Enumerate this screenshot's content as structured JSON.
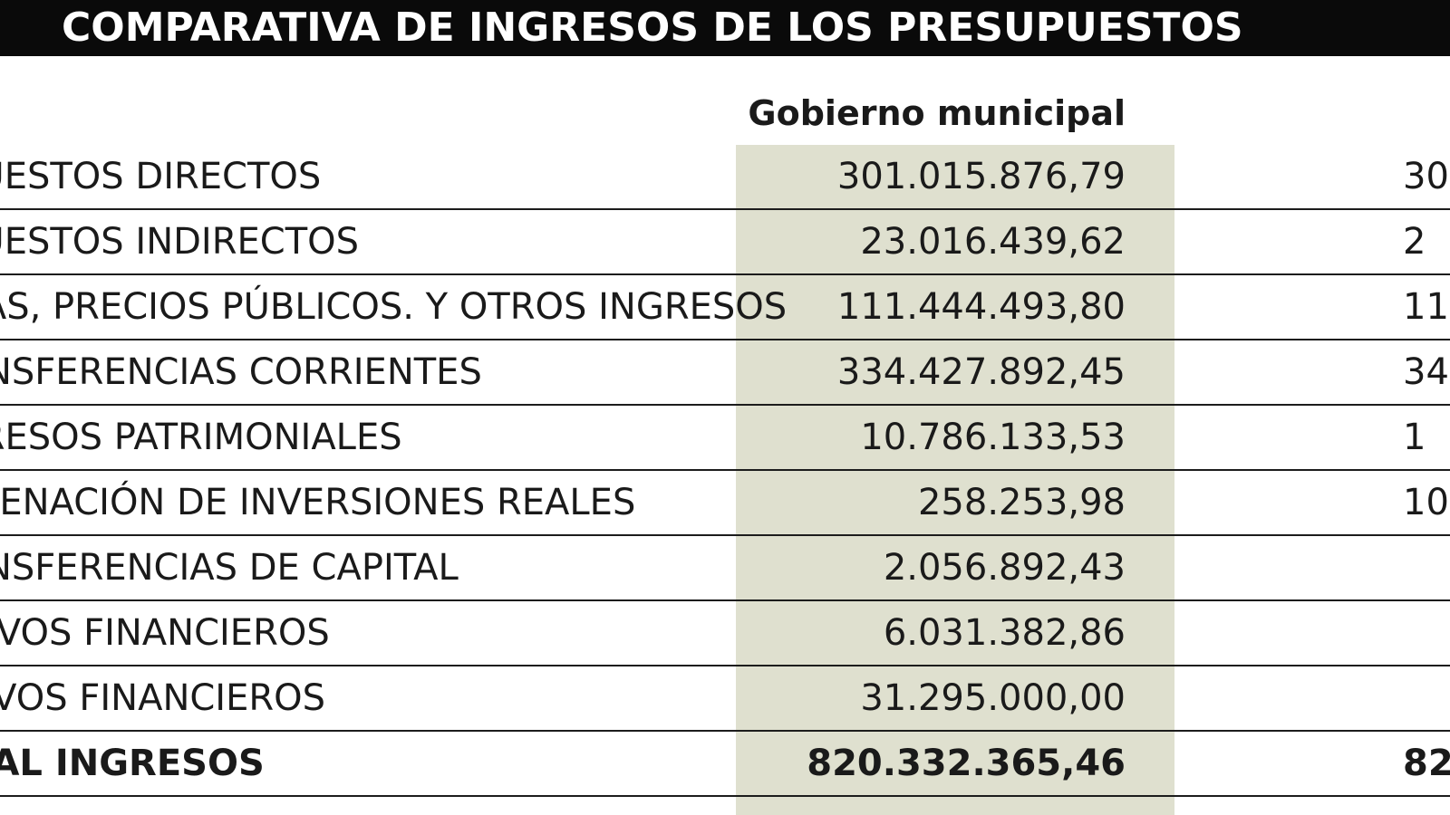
{
  "title": "COMPARATIVA DE INGRESOS DE LOS PRESUPUESTOS",
  "columns": {
    "municipal": "Gobierno municipal"
  },
  "rows": [
    {
      "label": "IMPUESTOS DIRECTOS",
      "municipal": "301.015.876,79",
      "other_partial": "30"
    },
    {
      "label": "IMPUESTOS INDIRECTOS",
      "municipal": "23.016.439,62",
      "other_partial": "2"
    },
    {
      "label": "TASAS, PRECIOS PÚBLICOS. Y OTROS INGRESOS",
      "municipal": "111.444.493,80",
      "other_partial": "11"
    },
    {
      "label": "TRANSFERENCIAS CORRIENTES",
      "municipal": "334.427.892,45",
      "other_partial": "34"
    },
    {
      "label": "INGRESOS PATRIMONIALES",
      "municipal": "10.786.133,53",
      "other_partial": "1"
    },
    {
      "label": "ENAJENACIÓN DE INVERSIONES REALES",
      "municipal": "258.253,98",
      "other_partial": "10"
    },
    {
      "label": "TRANSFERENCIAS DE CAPITAL",
      "municipal": "2.056.892,43",
      "other_partial": ""
    },
    {
      "label": "ACTIVOS FINANCIEROS",
      "municipal": "6.031.382,86",
      "other_partial": ""
    },
    {
      "label": "PASIVOS FINANCIEROS",
      "municipal": "31.295.000,00",
      "other_partial": ""
    },
    {
      "label": "TOTAL INGRESOS",
      "municipal": "820.332.365,46",
      "other_partial": "82"
    }
  ],
  "colors": {
    "title_background": "#0a0a0a",
    "title_text": "#ffffff",
    "highlight_column": "#dfe0cf",
    "row_divider": "#1c1c1c"
  }
}
